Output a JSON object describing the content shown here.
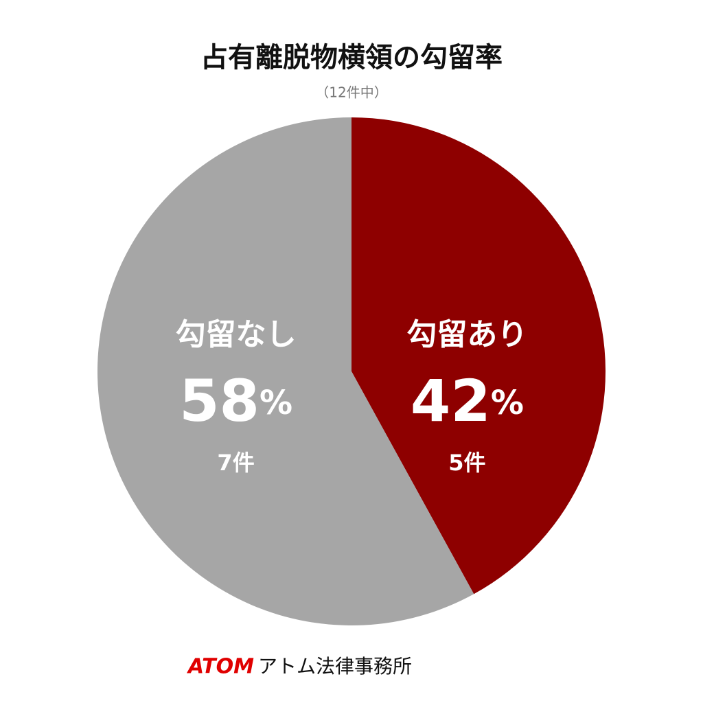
{
  "chart_data": {
    "type": "pie",
    "title": "占有離脱物横領の勾留率",
    "subtitle": "（12件中）",
    "categories": [
      "勾留あり",
      "勾留なし"
    ],
    "values": [
      42,
      58
    ],
    "value_labels": [
      "42%",
      "58%"
    ],
    "counts": [
      5,
      7
    ],
    "count_labels": [
      "5件",
      "7件"
    ],
    "colors": [
      "#8e0000",
      "#a6a6a6"
    ],
    "start_angle": 0,
    "direction": "clockwise"
  },
  "footer": {
    "brand": "ATOM",
    "name": "アトム法律事務所"
  }
}
